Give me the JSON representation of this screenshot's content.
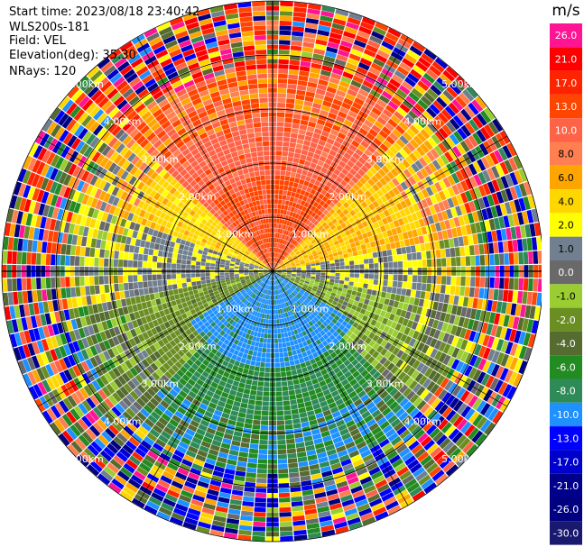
{
  "info": {
    "start_time": "Start time: 2023/08/18 23:40:42",
    "instrument": "WLS200s-181",
    "field": "Field: VEL",
    "elevation": "Elevation(deg): 35.30",
    "nrays": "NRays: 120"
  },
  "colorbar": {
    "unit": "m/s",
    "bins": [
      {
        "lo": 21.0,
        "hi": 26.0,
        "color": "#ff1493"
      },
      {
        "lo": 17.0,
        "hi": 21.0,
        "color": "#ff0000"
      },
      {
        "lo": 13.0,
        "hi": 17.0,
        "color": "#ff2400"
      },
      {
        "lo": 10.0,
        "hi": 13.0,
        "color": "#ff4500"
      },
      {
        "lo": 8.0,
        "hi": 10.0,
        "color": "#ff6347"
      },
      {
        "lo": 6.0,
        "hi": 8.0,
        "color": "#ff7f50"
      },
      {
        "lo": 4.0,
        "hi": 6.0,
        "color": "#ffa500"
      },
      {
        "lo": 2.0,
        "hi": 4.0,
        "color": "#ffd700"
      },
      {
        "lo": 1.0,
        "hi": 2.0,
        "color": "#ffff00"
      },
      {
        "lo": 0.0,
        "hi": 1.0,
        "color": "#708090"
      },
      {
        "lo": -1.0,
        "hi": 0.0,
        "color": "#696969"
      },
      {
        "lo": -2.0,
        "hi": -1.0,
        "color": "#9acd32"
      },
      {
        "lo": -4.0,
        "hi": -2.0,
        "color": "#6b8e23"
      },
      {
        "lo": -6.0,
        "hi": -4.0,
        "color": "#556b2f"
      },
      {
        "lo": -8.0,
        "hi": -6.0,
        "color": "#228b22"
      },
      {
        "lo": -10.0,
        "hi": -8.0,
        "color": "#2e8b57"
      },
      {
        "lo": -13.0,
        "hi": -10.0,
        "color": "#1e90ff"
      },
      {
        "lo": -17.0,
        "hi": -13.0,
        "color": "#0000ff"
      },
      {
        "lo": -21.0,
        "hi": -17.0,
        "color": "#0000cd"
      },
      {
        "lo": -26.0,
        "hi": -21.0,
        "color": "#00008b"
      },
      {
        "lo": -30.0,
        "hi": -26.0,
        "color": "#000080"
      },
      {
        "lo": -30.0,
        "hi": -30.0,
        "color": "#191970"
      }
    ],
    "tick_labels": [
      "26.0",
      "21.0",
      "17.0",
      "13.0",
      "10.0",
      "8.0",
      "6.0",
      "4.0",
      "2.0",
      "1.0",
      "0.0",
      "-1.0",
      "-2.0",
      "-4.0",
      "-6.0",
      "-8.0",
      "-10.0",
      "-13.0",
      "-17.0",
      "-21.0",
      "-26.0",
      "-30.0"
    ]
  },
  "chart_data": {
    "type": "heatmap",
    "plot_kind": "PPI (plan position indicator)",
    "field": "VEL",
    "units": "m/s",
    "n_rays": 120,
    "elevation_deg": 35.3,
    "max_range_km": 5.0,
    "range_ring_labels": [
      "1.00km",
      "2.00km",
      "3.00km",
      "4.00km",
      "5.00km"
    ],
    "sector_summary": [
      {
        "azimuth_from_deg": 315,
        "azimuth_to_deg": 45,
        "dominant_velocity_ms": 9.0
      },
      {
        "azimuth_from_deg": 45,
        "azimuth_to_deg": 80,
        "dominant_velocity_ms": 4.0
      },
      {
        "azimuth_from_deg": 80,
        "azimuth_to_deg": 100,
        "dominant_velocity_ms": 0.5
      },
      {
        "azimuth_from_deg": 100,
        "azimuth_to_deg": 135,
        "dominant_velocity_ms": -2.0
      },
      {
        "azimuth_from_deg": 135,
        "azimuth_to_deg": 225,
        "dominant_velocity_ms": -8.0
      },
      {
        "azimuth_from_deg": 225,
        "azimuth_to_deg": 260,
        "dominant_velocity_ms": -3.0
      },
      {
        "azimuth_from_deg": 260,
        "azimuth_to_deg": 290,
        "dominant_velocity_ms": 0.5
      },
      {
        "azimuth_from_deg": 290,
        "azimuth_to_deg": 315,
        "dominant_velocity_ms": 3.0
      }
    ],
    "near_center_negative_velocity_ms": -11.0,
    "outer_rings_noisy": true,
    "grid": true
  }
}
